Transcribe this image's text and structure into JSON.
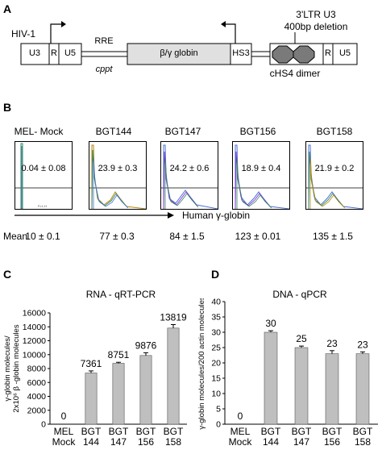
{
  "panel_a": {
    "letter": "A",
    "hiv_label": "HIV-1",
    "ltr5": [
      "U3",
      "R",
      "U5"
    ],
    "rre_label": "RRE",
    "cppt_label": "cppt",
    "globin_label": "β/γ globin",
    "hs3_label": "HS3",
    "ltr3_header": "3'LTR U3",
    "deletion_label": "400bp deletion",
    "chs4_label": "cHS4 dimer",
    "ltr3": [
      "R",
      "U5"
    ]
  },
  "panel_b": {
    "letter": "B",
    "samples": [
      {
        "name": "MEL- Mock",
        "value": "0.04 ± 0.08"
      },
      {
        "name": "BGT144",
        "value": "23.9 ± 0.3"
      },
      {
        "name": "BGT147",
        "value": "24.2 ± 0.6"
      },
      {
        "name": "BGT156",
        "value": "18.9 ± 0.4"
      },
      {
        "name": "BGT158",
        "value": "21.9 ± 0.2"
      }
    ],
    "arrow_label": "Human γ-globin",
    "mean_label": "Mean",
    "means": [
      "10 ± 0.1",
      "77 ± 0.3",
      "84 ± 1.5",
      "123 ± 0.01",
      "135 ± 1.5"
    ],
    "axis_tiny": "FL1-H",
    "count_tiny": "Counts"
  },
  "chart_data": [
    {
      "type": "bar",
      "panel": "C",
      "title": "RNA - qRT-PCR",
      "ylabel_line1": "γ-globin molecules/",
      "ylabel_line2": "2x10⁶ β -globin molecules",
      "categories": [
        [
          "MEL",
          "Mock"
        ],
        [
          "BGT",
          "144"
        ],
        [
          "BGT",
          "147"
        ],
        [
          "BGT",
          "156"
        ],
        [
          "BGT",
          "158"
        ]
      ],
      "values": [
        0,
        7361,
        8751,
        9876,
        13819
      ],
      "errors": [
        0,
        300,
        150,
        400,
        500
      ],
      "value_labels": [
        "0",
        "7361",
        "8751",
        "9876",
        "13819"
      ],
      "ylim": [
        0,
        16000
      ],
      "yticks": [
        0,
        2000,
        4000,
        6000,
        8000,
        10000,
        12000,
        14000,
        16000
      ],
      "bar_color": "#bfbfbf"
    },
    {
      "type": "bar",
      "panel": "D",
      "title": "DNA - qPCR",
      "ylabel_line1": "γ-globin molecules/200 actin molecules",
      "ylabel_line2": "",
      "categories": [
        [
          "MEL",
          "Mock"
        ],
        [
          "BGT",
          "144"
        ],
        [
          "BGT",
          "147"
        ],
        [
          "BGT",
          "156"
        ],
        [
          "BGT",
          "158"
        ]
      ],
      "values": [
        0,
        30,
        25,
        23,
        23
      ],
      "errors": [
        0,
        0.5,
        0.5,
        1.0,
        0.6
      ],
      "value_labels": [
        "0",
        "30",
        "25",
        "23",
        "23"
      ],
      "ylim": [
        0,
        40
      ],
      "yticks": [
        0,
        5,
        10,
        15,
        20,
        25,
        30,
        35,
        40
      ],
      "bar_color": "#bfbfbf"
    }
  ]
}
